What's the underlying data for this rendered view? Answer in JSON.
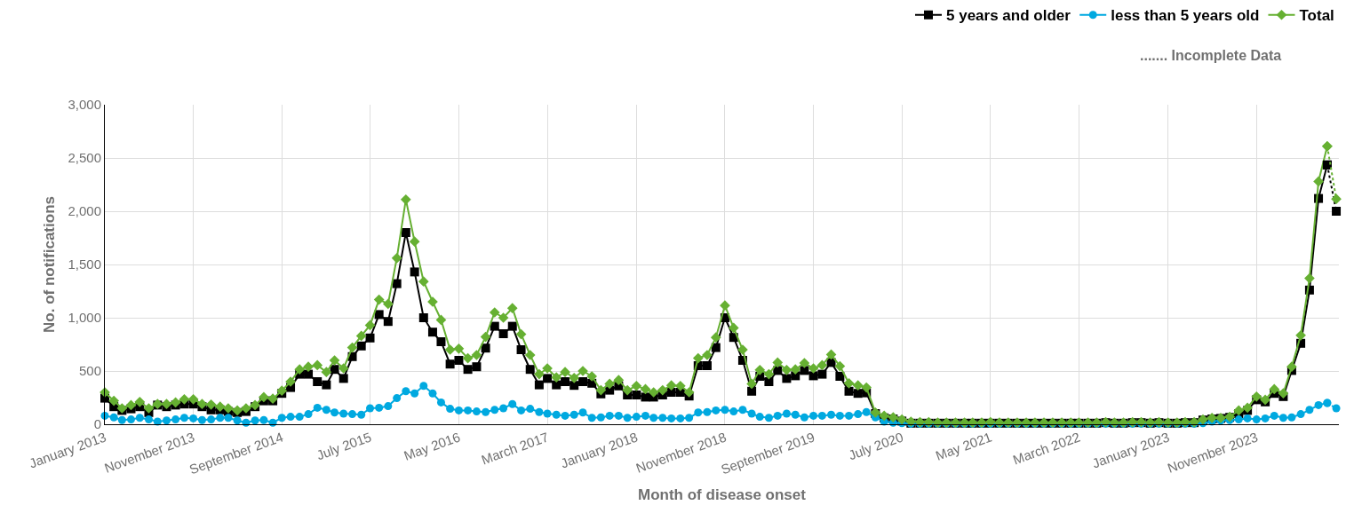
{
  "chart_data": {
    "type": "line",
    "xlabel": "Month of disease onset",
    "ylabel": "No. of notifications",
    "annotations": [
      "....... Incomplete Data"
    ],
    "x": [
      "2013-01",
      "2013-02",
      "2013-03",
      "2013-04",
      "2013-05",
      "2013-06",
      "2013-07",
      "2013-08",
      "2013-09",
      "2013-10",
      "2013-11",
      "2013-12",
      "2014-01",
      "2014-02",
      "2014-03",
      "2014-04",
      "2014-05",
      "2014-06",
      "2014-07",
      "2014-08",
      "2014-09",
      "2014-10",
      "2014-11",
      "2014-12",
      "2015-01",
      "2015-02",
      "2015-03",
      "2015-04",
      "2015-05",
      "2015-06",
      "2015-07",
      "2015-08",
      "2015-09",
      "2015-10",
      "2015-11",
      "2015-12",
      "2016-01",
      "2016-02",
      "2016-03",
      "2016-04",
      "2016-05",
      "2016-06",
      "2016-07",
      "2016-08",
      "2016-09",
      "2016-10",
      "2016-11",
      "2016-12",
      "2017-01",
      "2017-02",
      "2017-03",
      "2017-04",
      "2017-05",
      "2017-06",
      "2017-07",
      "2017-08",
      "2017-09",
      "2017-10",
      "2017-11",
      "2017-12",
      "2018-01",
      "2018-02",
      "2018-03",
      "2018-04",
      "2018-05",
      "2018-06",
      "2018-07",
      "2018-08",
      "2018-09",
      "2018-10",
      "2018-11",
      "2018-12",
      "2019-01",
      "2019-02",
      "2019-03",
      "2019-04",
      "2019-05",
      "2019-06",
      "2019-07",
      "2019-08",
      "2019-09",
      "2019-10",
      "2019-11",
      "2019-12",
      "2020-01",
      "2020-02",
      "2020-03",
      "2020-04",
      "2020-05",
      "2020-06",
      "2020-07",
      "2020-08",
      "2020-09",
      "2020-10",
      "2020-11",
      "2020-12",
      "2021-01",
      "2021-02",
      "2021-03",
      "2021-04",
      "2021-05",
      "2021-06",
      "2021-07",
      "2021-08",
      "2021-09",
      "2021-10",
      "2021-11",
      "2021-12",
      "2022-01",
      "2022-02",
      "2022-03",
      "2022-04",
      "2022-05",
      "2022-06",
      "2022-07",
      "2022-08",
      "2022-09",
      "2022-10",
      "2022-11",
      "2022-12",
      "2023-01",
      "2023-02",
      "2023-03",
      "2023-04",
      "2023-05",
      "2023-06",
      "2023-07",
      "2023-08",
      "2023-09",
      "2023-10",
      "2023-11",
      "2023-12",
      "2024-01",
      "2024-02",
      "2024-03",
      "2024-04",
      "2024-05",
      "2024-06",
      "2024-07"
    ],
    "xlim": [
      "2013-01",
      "2024-08-10"
    ],
    "xticks": [
      {
        "value": "2013-01",
        "label": "January 2013"
      },
      {
        "value": "2013-11",
        "label": "November 2013"
      },
      {
        "value": "2014-09",
        "label": "September 2014"
      },
      {
        "value": "2015-07",
        "label": "July 2015"
      },
      {
        "value": "2016-05",
        "label": "May 2016"
      },
      {
        "value": "2017-03",
        "label": "March 2017"
      },
      {
        "value": "2018-01",
        "label": "January 2018"
      },
      {
        "value": "2018-11",
        "label": "November 2018"
      },
      {
        "value": "2019-09",
        "label": "September 2019"
      },
      {
        "value": "2020-07",
        "label": "July 2020"
      },
      {
        "value": "2021-05",
        "label": "May 2021"
      },
      {
        "value": "2022-03",
        "label": "March 2022"
      },
      {
        "value": "2023-01",
        "label": "January 2023"
      },
      {
        "value": "2023-11",
        "label": "November 2023"
      }
    ],
    "ylim": [
      0,
      3000
    ],
    "yticks": [
      0,
      500,
      {
        "value": 1000,
        "label": "1,000"
      },
      {
        "value": 1500,
        "label": "1,500"
      },
      {
        "value": 2000,
        "label": "2,000"
      },
      {
        "value": 2500,
        "label": "2,500"
      },
      {
        "value": 3000,
        "label": "3,000"
      }
    ],
    "grid": true,
    "legend": "top right",
    "series": [
      {
        "name": "5 years and older",
        "color": "#000000",
        "marker": "square",
        "line_style": "solid",
        "values": [
          245,
          165,
          130,
          145,
          165,
          110,
          180,
          165,
          180,
          190,
          190,
          165,
          135,
          135,
          120,
          110,
          120,
          165,
          220,
          220,
          290,
          345,
          470,
          470,
          400,
          370,
          515,
          430,
          635,
          735,
          810,
          1030,
          965,
          1320,
          1800,
          1430,
          1000,
          865,
          775,
          565,
          600,
          515,
          540,
          715,
          920,
          850,
          920,
          700,
          515,
          370,
          430,
          370,
          400,
          365,
          400,
          385,
          285,
          320,
          360,
          275,
          275,
          255,
          255,
          275,
          300,
          300,
          265,
          550,
          550,
          720,
          1000,
          815,
          600,
          310,
          450,
          400,
          505,
          430,
          455,
          505,
          455,
          470,
          580,
          450,
          310,
          290,
          295,
          100,
          60,
          50,
          30,
          10,
          10,
          10,
          10,
          10,
          10,
          10,
          10,
          10,
          10,
          10,
          10,
          10,
          10,
          10,
          10,
          10,
          10,
          10,
          10,
          10,
          10,
          15,
          10,
          10,
          15,
          15,
          10,
          15,
          10,
          10,
          15,
          15,
          40,
          50,
          55,
          65,
          100,
          130,
          230,
          210,
          290,
          260,
          505,
          760,
          1260,
          2120,
          2435
        ]
      },
      {
        "name": "less than 5 years old",
        "color": "#00a9e0",
        "marker": "circle",
        "line_style": "solid",
        "values": [
          80,
          65,
          40,
          45,
          60,
          45,
          25,
          35,
          45,
          60,
          55,
          40,
          45,
          60,
          60,
          35,
          15,
          35,
          40,
          15,
          60,
          70,
          70,
          95,
          155,
          135,
          110,
          100,
          95,
          90,
          150,
          155,
          170,
          245,
          310,
          290,
          360,
          290,
          205,
          145,
          130,
          130,
          120,
          115,
          135,
          150,
          190,
          130,
          145,
          115,
          100,
          90,
          80,
          90,
          110,
          60,
          65,
          80,
          80,
          60,
          70,
          80,
          60,
          60,
          55,
          55,
          60,
          110,
          115,
          130,
          135,
          120,
          135,
          100,
          70,
          60,
          80,
          100,
          90,
          65,
          80,
          80,
          90,
          80,
          80,
          95,
          115,
          65,
          25,
          15,
          10,
          5,
          5,
          5,
          5,
          5,
          5,
          5,
          5,
          5,
          5,
          5,
          5,
          5,
          5,
          5,
          5,
          5,
          5,
          5,
          5,
          5,
          5,
          5,
          5,
          5,
          5,
          5,
          5,
          5,
          5,
          5,
          5,
          5,
          10,
          25,
          35,
          40,
          45,
          55,
          45,
          55,
          80,
          60,
          65,
          95,
          135,
          180,
          200
        ]
      },
      {
        "name": "Total",
        "color": "#66b032",
        "marker": "diamond",
        "line_style": "solid",
        "values": [
          300,
          220,
          150,
          180,
          210,
          150,
          190,
          190,
          205,
          235,
          235,
          190,
          185,
          165,
          150,
          130,
          150,
          180,
          255,
          240,
          315,
          400,
          515,
          540,
          555,
          490,
          600,
          525,
          720,
          830,
          930,
          1170,
          1130,
          1560,
          2110,
          1715,
          1340,
          1150,
          980,
          700,
          710,
          620,
          650,
          820,
          1050,
          1000,
          1090,
          845,
          650,
          470,
          525,
          440,
          490,
          435,
          500,
          450,
          320,
          380,
          415,
          320,
          360,
          330,
          300,
          320,
          365,
          360,
          300,
          620,
          650,
          815,
          1115,
          905,
          700,
          380,
          510,
          470,
          580,
          510,
          515,
          575,
          525,
          555,
          655,
          545,
          385,
          365,
          345,
          110,
          80,
          65,
          45,
          25,
          20,
          20,
          15,
          15,
          15,
          15,
          15,
          15,
          20,
          15,
          15,
          15,
          15,
          15,
          15,
          15,
          15,
          15,
          15,
          15,
          15,
          20,
          15,
          15,
          20,
          20,
          15,
          20,
          15,
          15,
          20,
          20,
          45,
          60,
          60,
          70,
          130,
          155,
          260,
          230,
          330,
          290,
          540,
          835,
          1370,
          2280,
          2610
        ]
      },
      {
        "color": "#000000",
        "marker": "square",
        "line_style": "dotted",
        "x": [
          "2024-07",
          "2024-08"
        ],
        "values": [
          2435,
          2000
        ]
      },
      {
        "color": "#00a9e0",
        "marker": "circle",
        "line_style": "dotted",
        "x": [
          "2024-07",
          "2024-08"
        ],
        "values": [
          200,
          150
        ]
      },
      {
        "color": "#66b032",
        "marker": "diamond",
        "line_style": "dotted",
        "x": [
          "2024-07",
          "2024-08"
        ],
        "values": [
          2610,
          2115
        ]
      }
    ]
  }
}
